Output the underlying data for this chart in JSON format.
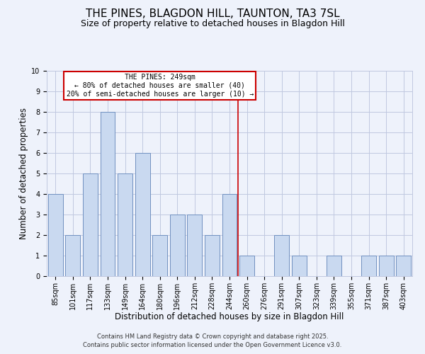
{
  "title": "THE PINES, BLAGDON HILL, TAUNTON, TA3 7SL",
  "subtitle": "Size of property relative to detached houses in Blagdon Hill",
  "xlabel": "Distribution of detached houses by size in Blagdon Hill",
  "ylabel": "Number of detached properties",
  "bar_labels": [
    "85sqm",
    "101sqm",
    "117sqm",
    "133sqm",
    "149sqm",
    "164sqm",
    "180sqm",
    "196sqm",
    "212sqm",
    "228sqm",
    "244sqm",
    "260sqm",
    "276sqm",
    "291sqm",
    "307sqm",
    "323sqm",
    "339sqm",
    "355sqm",
    "371sqm",
    "387sqm",
    "403sqm"
  ],
  "bar_values": [
    4,
    2,
    5,
    8,
    5,
    6,
    2,
    3,
    3,
    2,
    4,
    1,
    0,
    2,
    1,
    0,
    1,
    0,
    1,
    1,
    1
  ],
  "bar_color": "#c9d9f0",
  "bar_edge_color": "#7090c0",
  "background_color": "#eef2fb",
  "grid_color": "#c0c8e0",
  "vline_x": 10.5,
  "vline_color": "#cc0000",
  "annotation_text": "THE PINES: 249sqm\n← 80% of detached houses are smaller (40)\n20% of semi-detached houses are larger (10) →",
  "annotation_box_color": "#ffffff",
  "annotation_box_edge": "#cc0000",
  "ylim": [
    0,
    10
  ],
  "yticks": [
    0,
    1,
    2,
    3,
    4,
    5,
    6,
    7,
    8,
    9,
    10
  ],
  "footer_line1": "Contains HM Land Registry data © Crown copyright and database right 2025.",
  "footer_line2": "Contains public sector information licensed under the Open Government Licence v3.0.",
  "title_fontsize": 11,
  "subtitle_fontsize": 9,
  "axis_label_fontsize": 8.5,
  "tick_fontsize": 7,
  "footer_fontsize": 6
}
